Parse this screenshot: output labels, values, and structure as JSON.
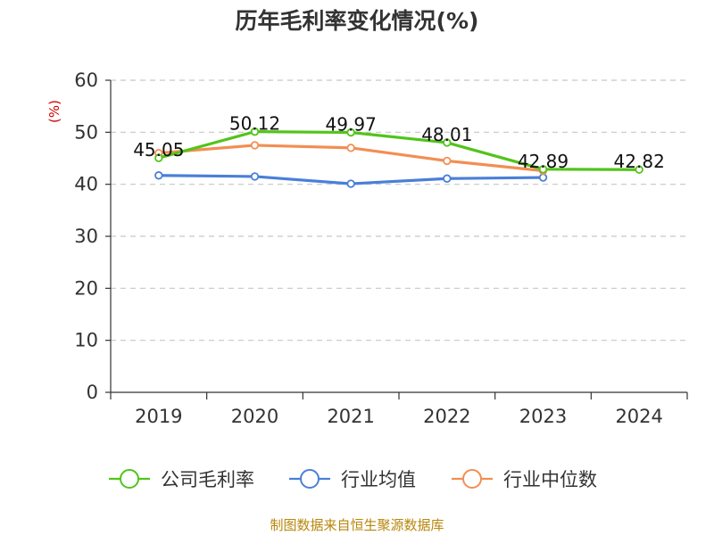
{
  "chart_data": {
    "type": "line",
    "title": "历年毛利率变化情况(%)",
    "ylabel": "(%)",
    "xlabel": "",
    "categories": [
      "2019",
      "2020",
      "2021",
      "2022",
      "2023",
      "2024"
    ],
    "ylim": [
      0,
      60
    ],
    "yticks": [
      0,
      10,
      20,
      30,
      40,
      50,
      60
    ],
    "grid": true,
    "legend_position": "bottom",
    "series": [
      {
        "name": "公司毛利率",
        "values": [
          45.05,
          50.12,
          49.97,
          48.01,
          42.89,
          42.82
        ],
        "color": "#52c41a",
        "labels": [
          "45.05",
          "50.12",
          "49.97",
          "48.01",
          "42.89",
          "42.82"
        ]
      },
      {
        "name": "行业均值",
        "values": [
          41.7,
          41.5,
          40.1,
          41.1,
          41.3,
          null
        ],
        "color": "#4a7fd9"
      },
      {
        "name": "行业中位数",
        "values": [
          46.0,
          47.5,
          47.0,
          44.5,
          42.6,
          null
        ],
        "color": "#f28e54"
      }
    ]
  },
  "footer": {
    "source_text": "制图数据来自恒生聚源数据库"
  }
}
